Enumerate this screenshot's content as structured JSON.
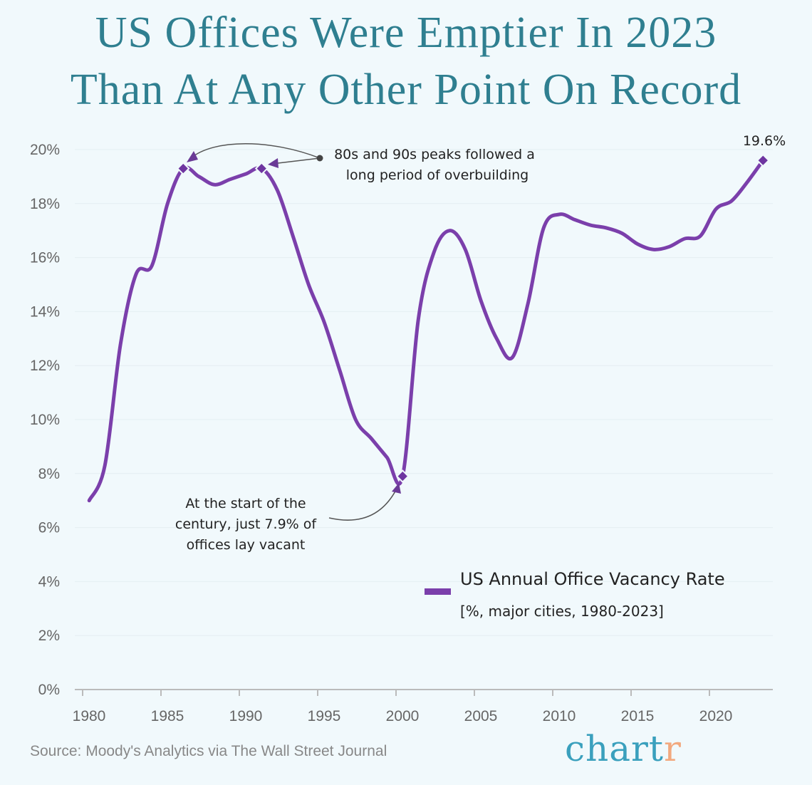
{
  "title_line1": "US Offices Were Emptier In 2023",
  "title_line2": "Than At Any Other Point On Record",
  "source": "Source: Moody's Analytics via The Wall Street Journal",
  "logo": {
    "main": "chart",
    "accent": "r"
  },
  "colors": {
    "line": "#7b3fab",
    "title": "#2f7f90",
    "background": "#f1f9fc"
  },
  "chart_data": {
    "type": "line",
    "title": "US Offices Were Emptier In 2023 Than At Any Other Point On Record",
    "xlabel": "",
    "ylabel": "",
    "xlim": [
      1980,
      2024
    ],
    "ylim": [
      0,
      20
    ],
    "x_ticks": [
      "1980",
      "1985",
      "1990",
      "1995",
      "2000",
      "2005",
      "2010",
      "2015",
      "2020"
    ],
    "y_ticks": [
      "0%",
      "2%",
      "4%",
      "6%",
      "8%",
      "10%",
      "12%",
      "14%",
      "16%",
      "18%",
      "20%"
    ],
    "grid": "horizontal",
    "series": [
      {
        "name": "US Annual Office Vacancy Rate",
        "x": [
          1980,
          1981,
          1982,
          1983,
          1984,
          1985,
          1986,
          1987,
          1988,
          1989,
          1990,
          1991,
          1992,
          1993,
          1994,
          1995,
          1996,
          1997,
          1998,
          1999,
          2000,
          2001,
          2002,
          2003,
          2004,
          2005,
          2006,
          2007,
          2008,
          2009,
          2010,
          2011,
          2012,
          2013,
          2014,
          2015,
          2016,
          2017,
          2018,
          2019,
          2020,
          2021,
          2022,
          2023
        ],
        "values": [
          7.0,
          8.3,
          12.8,
          15.4,
          15.7,
          18.0,
          19.3,
          19.0,
          18.7,
          18.9,
          19.1,
          19.3,
          18.5,
          16.8,
          15.0,
          13.6,
          11.8,
          10.0,
          9.3,
          8.6,
          7.9,
          13.7,
          16.2,
          17.0,
          16.3,
          14.4,
          13.0,
          12.3,
          14.3,
          17.1,
          17.6,
          17.4,
          17.2,
          17.1,
          16.9,
          16.5,
          16.3,
          16.4,
          16.7,
          16.8,
          17.8,
          18.1,
          18.8,
          19.6
        ]
      }
    ],
    "markers": [
      1986,
      1991,
      2000,
      2023
    ],
    "legend": {
      "label": "US Annual Office Vacancy Rate",
      "sublabel": "[%, major cities, 1980-2023]",
      "placement": "bottom-right"
    },
    "annotations": {
      "peaks": [
        "80s and 90s peaks followed a",
        "long period of overbuilding"
      ],
      "low": [
        "At the start of the",
        "century, just 7.9% of",
        "offices lay vacant"
      ],
      "last_value": "19.6%"
    }
  }
}
